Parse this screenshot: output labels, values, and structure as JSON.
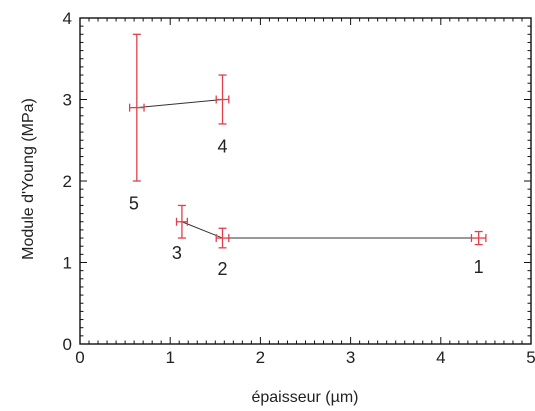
{
  "chart_data": {
    "type": "scatter",
    "xlabel": "épaisseur (µm)",
    "ylabel": "Module d'Young (MPa)",
    "xlim": [
      0,
      5
    ],
    "ylim": [
      0,
      4
    ],
    "x_ticks": [
      "0",
      "1",
      "2",
      "3",
      "4",
      "5"
    ],
    "y_ticks": [
      "0",
      "1",
      "2",
      "3",
      "4"
    ],
    "grid": false,
    "points": [
      {
        "label": "1",
        "x": 4.42,
        "y": 1.3,
        "xerr": 0.08,
        "yerr": 0.08
      },
      {
        "label": "2",
        "x": 1.58,
        "y": 1.3,
        "xerr": 0.07,
        "yerr": 0.12
      },
      {
        "label": "3",
        "x": 1.13,
        "y": 1.5,
        "xerr": 0.06,
        "yerr": 0.2
      },
      {
        "label": "4",
        "x": 1.58,
        "y": 3.0,
        "xerr": 0.07,
        "yerr": 0.3
      },
      {
        "label": "5",
        "x": 0.63,
        "y": 2.9,
        "xerr": 0.08,
        "yerr": 0.9
      }
    ],
    "lines": [
      {
        "points": [
          "3",
          "2",
          "1"
        ]
      },
      {
        "points": [
          "5",
          "4"
        ]
      }
    ],
    "colors": {
      "marker": "#e0404a",
      "line": "#333333",
      "axis": "#111111"
    }
  }
}
